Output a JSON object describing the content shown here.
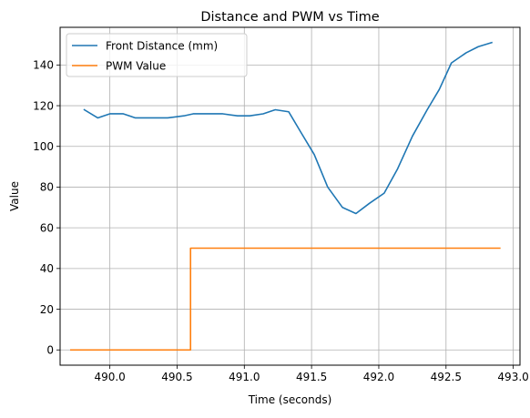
{
  "chart_data": {
    "type": "line",
    "title": "Distance and PWM vs Time",
    "xlabel": "Time (seconds)",
    "ylabel": "Value",
    "xlim": [
      489.63,
      493.05
    ],
    "ylim": [
      -7.5,
      158.5
    ],
    "xticks": [
      490.0,
      490.5,
      491.0,
      491.5,
      492.0,
      492.5,
      493.0
    ],
    "xtick_labels": [
      "490.0",
      "490.5",
      "491.0",
      "491.5",
      "492.0",
      "492.5",
      "493.0"
    ],
    "yticks": [
      0,
      20,
      40,
      60,
      80,
      100,
      120,
      140
    ],
    "ytick_labels": [
      "0",
      "20",
      "40",
      "60",
      "80",
      "100",
      "120",
      "140"
    ],
    "grid": true,
    "legend_position": "top-left",
    "series": [
      {
        "name": "Front Distance (mm)",
        "color": "#1f77b4",
        "x": [
          489.81,
          489.91,
          490.0,
          490.1,
          490.19,
          490.31,
          490.43,
          490.55,
          490.62,
          490.72,
          490.84,
          490.95,
          491.04,
          491.14,
          491.23,
          491.33,
          491.42,
          491.52,
          491.62,
          491.73,
          491.83,
          491.93,
          492.04,
          492.14,
          492.25,
          492.36,
          492.45,
          492.54,
          492.65,
          492.74,
          492.84
        ],
        "y": [
          118,
          114,
          116,
          116,
          114,
          114,
          114,
          115,
          116,
          116,
          116,
          115,
          115,
          116,
          118,
          117,
          107,
          96,
          80,
          70,
          67,
          72,
          77,
          89,
          105,
          118,
          128,
          141,
          146,
          149,
          151
        ]
      },
      {
        "name": "PWM Value",
        "color": "#ff7f0e",
        "x": [
          489.71,
          490.6,
          490.6,
          492.9
        ],
        "y": [
          0,
          0,
          50,
          50
        ]
      }
    ]
  }
}
